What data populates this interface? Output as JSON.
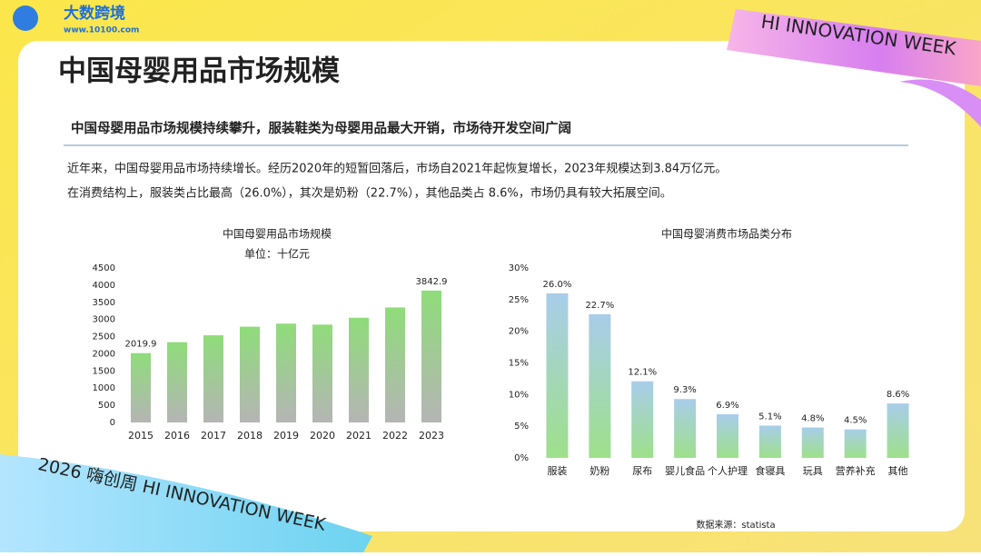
{
  "logo": {
    "name": "大数跨境",
    "url": "www.10100.com"
  },
  "ribbon_top": "HI INNOVATION WEEK",
  "ribbon_bottom": "2026 嗨创周 HI INNOVATION WEEK",
  "header": {
    "title": "中国母婴用品市场规模",
    "subtitle": "中国母婴用品市场规模持续攀升，服装鞋类为母婴用品最大开销，市场待开发空间广阔"
  },
  "body": [
    "近年来，中国母婴用品市场持续增长。经历2020年的短暂回落后，市场自2021年起恢复增长，2023年规模达到3.84万亿元。",
    "在消费结构上，服装类占比最高（26.0%），其次是奶粉（22.7%），其他品类占 8.6%，市场仍具有较大拓展空间。"
  ],
  "source": "数据来源：statista",
  "chart_data": [
    {
      "type": "bar",
      "title": "中国母婴用品市场规模",
      "subtitle": "单位：十亿元",
      "categories": [
        "2015",
        "2016",
        "2017",
        "2018",
        "2019",
        "2020",
        "2021",
        "2022",
        "2023"
      ],
      "values": [
        2019.9,
        2340,
        2540,
        2790,
        2880,
        2850,
        3050,
        3350,
        3842.9
      ],
      "value_labels": [
        "2019.9",
        null,
        null,
        null,
        null,
        null,
        null,
        null,
        "3842.9"
      ],
      "color": [
        "#8fdc7a",
        "#b5b5b5"
      ],
      "ylim": [
        0,
        4500
      ],
      "yticks": [
        0,
        500,
        1000,
        1500,
        2000,
        2500,
        3000,
        3500,
        4000,
        4500
      ]
    },
    {
      "type": "bar",
      "title": "中国母婴消费市场品类分布",
      "categories": [
        "服装",
        "奶粉",
        "尿布",
        "婴儿食品",
        "个人护理",
        "食寝具",
        "玩具",
        "营养补充",
        "其他"
      ],
      "values": [
        26.0,
        22.7,
        12.1,
        9.3,
        6.9,
        5.1,
        4.8,
        4.5,
        8.6
      ],
      "value_labels": [
        "26.0%",
        "22.7%",
        "12.1%",
        "9.3%",
        "6.9%",
        "5.1%",
        "4.8%",
        "4.5%",
        "8.6%"
      ],
      "color": [
        "#a9cdea",
        "#9ee08a"
      ],
      "ylim": [
        0,
        30
      ],
      "yticks": [
        {
          "value": 0,
          "label": "0%"
        },
        {
          "value": 5,
          "label": "5%"
        },
        {
          "value": 10,
          "label": "10%"
        },
        {
          "value": 15,
          "label": "15%"
        },
        {
          "value": 20,
          "label": "20%"
        },
        {
          "value": 25,
          "label": "25%"
        },
        {
          "value": 30,
          "label": "30%"
        }
      ]
    }
  ]
}
